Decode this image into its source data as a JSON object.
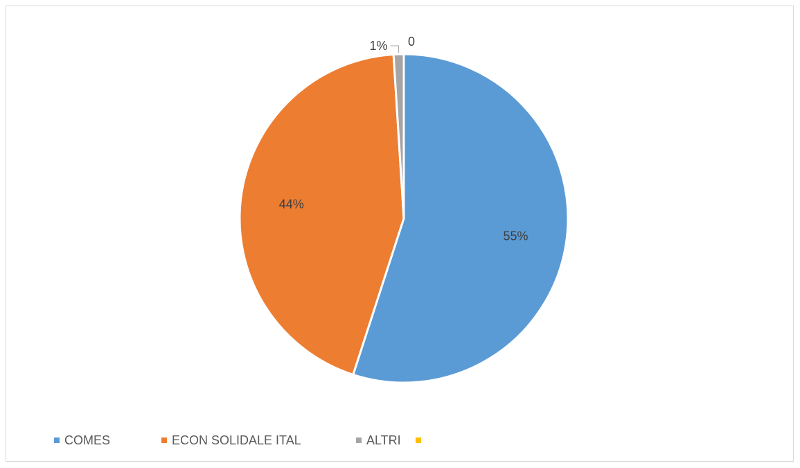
{
  "chart_data": {
    "type": "pie",
    "title": "",
    "slices": [
      {
        "label": "COMES",
        "value": 55,
        "display": "55%",
        "color": "#5B9BD5"
      },
      {
        "label": "ECON SOLIDALE ITAL",
        "value": 44,
        "display": "44%",
        "color": "#ED7D31"
      },
      {
        "label": "ALTRI",
        "value": 1,
        "display": "1%",
        "color": "#A5A5A5"
      },
      {
        "label": "",
        "value": 0,
        "display": "0",
        "color": "#FFC000"
      }
    ],
    "legend_position": "bottom-left",
    "start_angle": "12 o'clock",
    "direction": "clockwise"
  }
}
